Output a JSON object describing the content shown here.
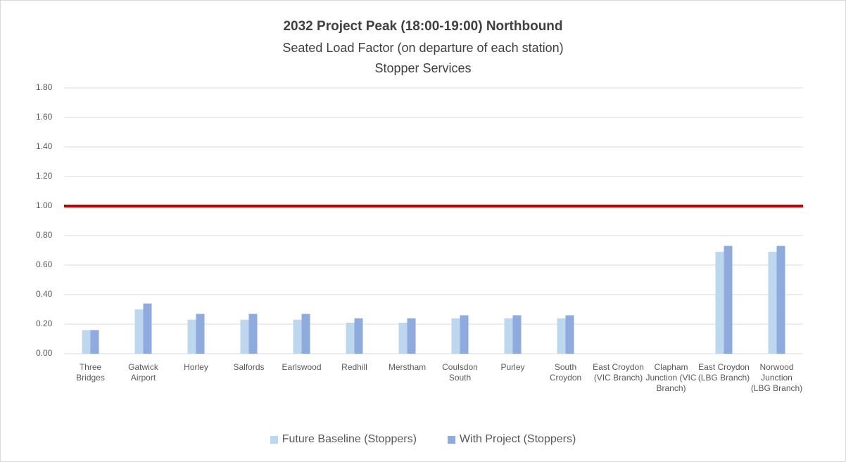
{
  "chart_data": {
    "type": "bar",
    "title": "2032 Project Peak (18:00-19:00) Northbound",
    "subtitle": "Seated Load Factor (on departure of each station)",
    "subtitle2": "Stopper Services",
    "categories": [
      "Three Bridges",
      "Gatwick Airport",
      "Horley",
      "Salfords",
      "Earlswood",
      "Redhill",
      "Merstham",
      "Coulsdon South",
      "Purley",
      "South Croydon",
      "East Croydon (VIC Branch)",
      "Clapham Junction (VIC Branch)",
      "East Croydon (LBG Branch)",
      "Norwood Junction (LBG Branch)"
    ],
    "series": [
      {
        "name": "Future Baseline (Stoppers)",
        "color": "#bdd7ee",
        "values": [
          0.16,
          0.3,
          0.23,
          0.23,
          0.23,
          0.21,
          0.21,
          0.24,
          0.24,
          0.24,
          null,
          null,
          0.69,
          0.69
        ]
      },
      {
        "name": "With Project (Stoppers)",
        "color": "#8faadc",
        "values": [
          0.16,
          0.34,
          0.27,
          0.27,
          0.27,
          0.24,
          0.24,
          0.26,
          0.26,
          0.26,
          null,
          null,
          0.73,
          0.73
        ]
      }
    ],
    "reference_line": {
      "value": 1,
      "color": "#c00000"
    },
    "ylim": [
      0,
      1.8
    ],
    "yticks": [
      {
        "value": 0,
        "label": "0.00"
      },
      {
        "value": 0.2,
        "label": "0.20"
      },
      {
        "value": 0.4,
        "label": "0.40"
      },
      {
        "value": 0.6,
        "label": "0.60"
      },
      {
        "value": 0.8,
        "label": "0.80"
      },
      {
        "value": 1,
        "label": "1.00"
      },
      {
        "value": 1.2,
        "label": "1.20"
      },
      {
        "value": 1.4,
        "label": "1.40"
      },
      {
        "value": 1.6,
        "label": "1.60"
      },
      {
        "value": 1.8,
        "label": "1.80"
      }
    ],
    "grid": true
  }
}
